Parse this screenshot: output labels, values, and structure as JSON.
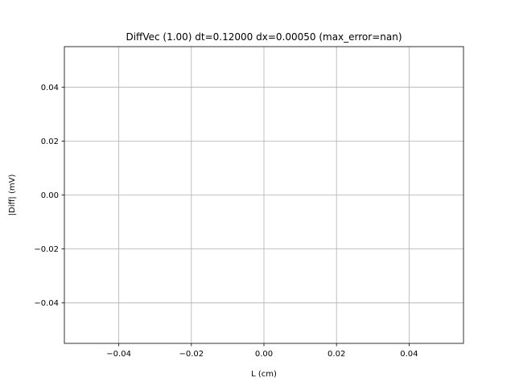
{
  "chart_data": {
    "type": "line",
    "title": "DiffVec (1.00) dt=0.12000 dx=0.00050 (max_error=nan)",
    "xlabel": "L (cm)",
    "ylabel": "|Diff| (mV)",
    "xlim": [
      -0.055,
      0.055
    ],
    "ylim": [
      -0.055,
      0.055
    ],
    "xticks": [
      -0.04,
      -0.02,
      0.0,
      0.02,
      0.04
    ],
    "xtick_labels": [
      "−0.04",
      "−0.02",
      "0.00",
      "0.02",
      "0.04"
    ],
    "yticks": [
      -0.04,
      -0.02,
      0.0,
      0.02,
      0.04
    ],
    "ytick_labels": [
      "−0.04",
      "−0.02",
      "0.00",
      "0.02",
      "0.04"
    ],
    "grid": true,
    "series": [],
    "colors": {
      "grid": "#b0b0b0",
      "axes": "#000000",
      "background": "#ffffff"
    }
  }
}
